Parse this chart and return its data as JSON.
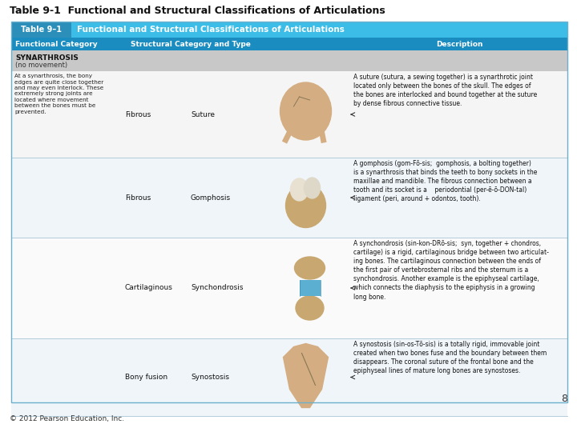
{
  "title": "Table 9-1  Functional and Structural Classifications of Articulations",
  "page_number": "8",
  "copyright": "© 2012 Pearson Education, Inc.",
  "table_title": "Table 9–1",
  "table_subtitle": "Functional and Structural Classifications of Articulations",
  "header_bg": "#3bbde8",
  "header_dark_bg": "#2b8fba",
  "col_header_bg": "#1a8cc0",
  "synarthrosis_bg": "#c8c8c8",
  "row1_bg": "#f5f5f5",
  "row2_bg": "#f0f5fa",
  "row3_bg": "#fafafa",
  "row4_bg": "#f0f5fa",
  "bg_color": "#ffffff",
  "outer_bg": "#f0f5fa",
  "synarthrosis_label": "SYNARTHROSIS",
  "synarthrosis_sublabel": "(no movement)",
  "col_headers": [
    "Functional Category",
    "Structural Category and Type",
    "Description"
  ],
  "functional_text": "At a synarthrosis, the bony\nedges are quite close together\nand may even interlock. These\nextremely strong joints are\nlocated where movement\nbetween the bones must be\nprevented.",
  "rows": [
    {
      "structural_cat": "Fibrous",
      "structural_type": "Suture",
      "description": "A suture (sutura, a sewing together) is a synarthrotic joint\nlocated only between the bones of the skull. The edges of\nthe bones are interlocked and bound together at the suture\nby dense fibrous connective tissue.",
      "desc_bold_word": "suture",
      "row_bg": "#f5f5f5",
      "image_type": "skull_top"
    },
    {
      "structural_cat": "Fibrous",
      "structural_type": "Gomphosis",
      "description": "A gomphosis (gom-Fō-sis;  gomphosis, a bolting together)\nis a synarthrosis that binds the teeth to bony sockets in the\nmaxillae and mandible. The fibrous connection between a\ntooth and its socket is a    periodontial (per-ē-ō-DON-tal)\nligament (peri, around + odontos, tooth).",
      "desc_bold_word": "gomphosis",
      "row_bg": "#f0f5fa",
      "image_type": "tooth"
    },
    {
      "structural_cat": "Cartilaginous",
      "structural_type": "Synchondrosis",
      "description": "A synchondrosis (sin-kon-DRō-sis;  syn, together + chondros,\ncartilage) is a rigid, cartilaginous bridge between two articulat-\ning bones. The cartilaginous connection between the ends of\nthe first pair of vertebrosternal ribs and the sternum is a\nsynchondrosis. Another example is the epiphyseal cartilage,\nwhich connects the diaphysis to the epiphysis in a growing\nlong bone.",
      "desc_bold_word": "synchondrosis",
      "row_bg": "#fafafa",
      "image_type": "synchondrosis"
    },
    {
      "structural_cat": "Bony fusion",
      "structural_type": "Synostosis",
      "description": "A synostosis (sin-os-Tō-sis) is a totally rigid, immovable joint\ncreated when two bones fuse and the boundary between them\ndisappears. The coronal suture of the frontal bone and the\nepiphyseal lines of mature long bones are synostoses.",
      "desc_bold_word": "synostosis",
      "row_bg": "#f0f5fa",
      "image_type": "skull_fused"
    }
  ]
}
